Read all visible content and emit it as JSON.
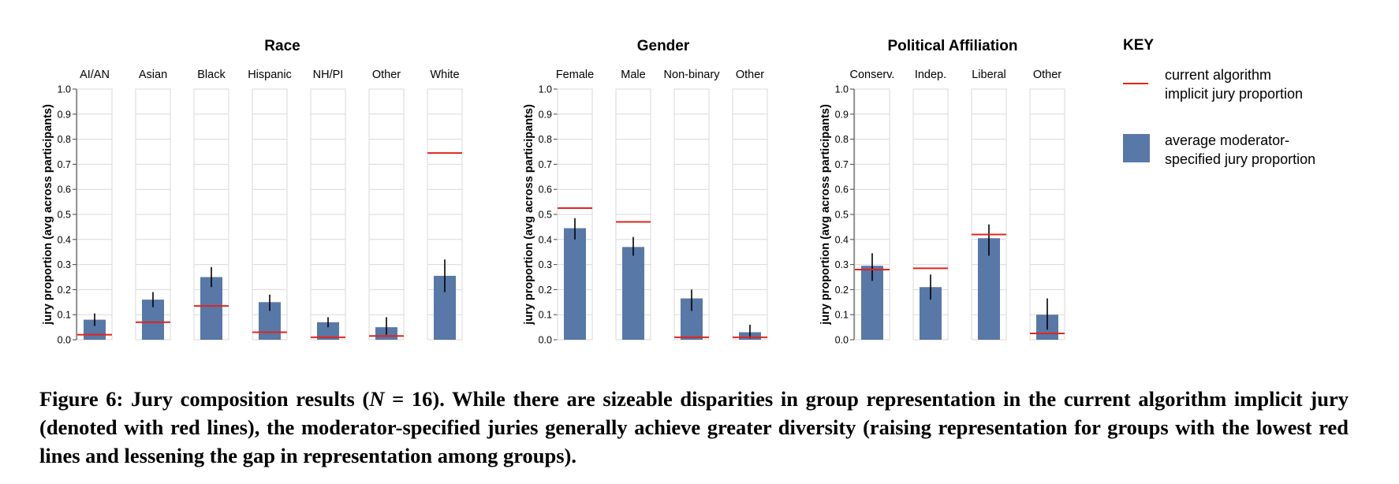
{
  "colors": {
    "bar": "#5878a7",
    "red_line": "#e0251c",
    "grid": "#d9d9d9",
    "error": "#000000"
  },
  "chart_data": [
    {
      "type": "bar",
      "title": "Race",
      "ylabel": "jury proportion (avg across participants)",
      "ylim": [
        0,
        1.0
      ],
      "yticks": [
        "0.0",
        "0.1",
        "0.2",
        "0.3",
        "0.4",
        "0.5",
        "0.6",
        "0.7",
        "0.8",
        "0.9",
        "1.0"
      ],
      "grid": true,
      "categories": [
        "AI/AN",
        "Asian",
        "Black",
        "Hispanic",
        "NH/PI",
        "Other",
        "White"
      ],
      "moderator_values": [
        0.08,
        0.16,
        0.25,
        0.15,
        0.07,
        0.05,
        0.255
      ],
      "error_low": [
        0.055,
        0.13,
        0.21,
        0.115,
        0.05,
        0.02,
        0.19
      ],
      "error_high": [
        0.105,
        0.19,
        0.29,
        0.18,
        0.09,
        0.09,
        0.32
      ],
      "algorithm_values": [
        0.02,
        0.07,
        0.135,
        0.03,
        0.01,
        0.015,
        0.745
      ]
    },
    {
      "type": "bar",
      "title": "Gender",
      "ylabel": "jury proportion (avg across participants)",
      "ylim": [
        0,
        1.0
      ],
      "yticks": [
        "0.0",
        "0.1",
        "0.2",
        "0.3",
        "0.4",
        "0.5",
        "0.6",
        "0.7",
        "0.8",
        "0.9",
        "1.0"
      ],
      "grid": true,
      "categories": [
        "Female",
        "Male",
        "Non-binary",
        "Other"
      ],
      "moderator_values": [
        0.445,
        0.37,
        0.165,
        0.03
      ],
      "error_low": [
        0.4,
        0.335,
        0.115,
        0.005
      ],
      "error_high": [
        0.485,
        0.41,
        0.2,
        0.06
      ],
      "algorithm_values": [
        0.525,
        0.47,
        0.01,
        0.01
      ]
    },
    {
      "type": "bar",
      "title": "Political Affiliation",
      "ylabel": "jury proportion (avg across participants)",
      "ylim": [
        0,
        1.0
      ],
      "yticks": [
        "0.0",
        "0.1",
        "0.2",
        "0.3",
        "0.4",
        "0.5",
        "0.6",
        "0.7",
        "0.8",
        "0.9",
        "1.0"
      ],
      "grid": true,
      "categories": [
        "Conserv.",
        "Indep.",
        "Liberal",
        "Other"
      ],
      "moderator_values": [
        0.295,
        0.21,
        0.405,
        0.1
      ],
      "error_low": [
        0.235,
        0.16,
        0.335,
        0.04
      ],
      "error_high": [
        0.345,
        0.26,
        0.46,
        0.165
      ],
      "algorithm_values": [
        0.28,
        0.285,
        0.42,
        0.025
      ]
    }
  ],
  "key": {
    "title": "KEY",
    "red_line_label": [
      "current algorithm",
      "implicit jury proportion"
    ],
    "bar_label": [
      "average moderator-",
      "specified jury proportion"
    ]
  },
  "caption": {
    "prefix": "Figure 6: Jury composition results (",
    "n_symbol": "N",
    "n_value": " = 16",
    "suffix": "). While there are sizeable disparities in group representation in the current algorithm implicit jury (denoted with red lines), the moderator-specified juries generally achieve greater diversity (raising representation for groups with the lowest red lines and lessening the gap in representation among groups)."
  }
}
